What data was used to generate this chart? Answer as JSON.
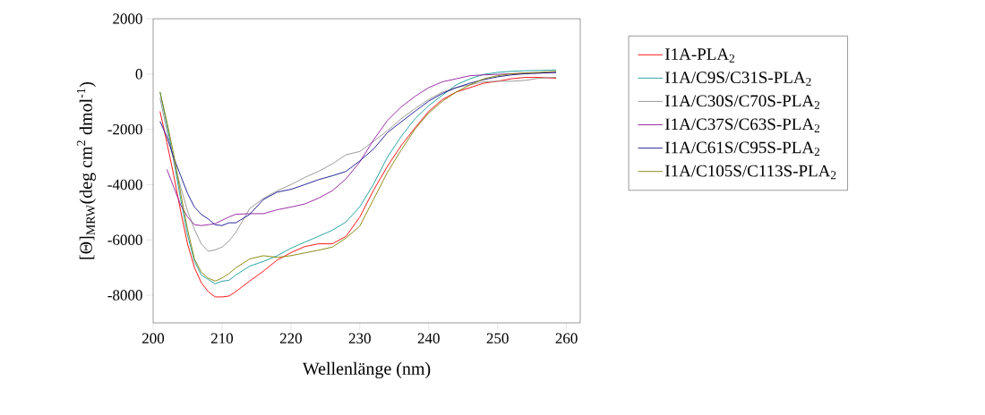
{
  "chart_data": {
    "type": "line",
    "xlabel": "Wellenlänge (nm)",
    "ylabel": "[Θ]$_{MRW}$(deg cm$^{2}$ dmol$^{-1}$)",
    "x": [
      201,
      202,
      203,
      204,
      205,
      206,
      207,
      208,
      209,
      210,
      211,
      212,
      214,
      216,
      218,
      220,
      222,
      224,
      226,
      228,
      230,
      232,
      234,
      236,
      238,
      240,
      242,
      244,
      246,
      248,
      250,
      252,
      254,
      256,
      258.5
    ],
    "series": [
      {
        "name": "I1A-PLA$_{2}$",
        "color": "#ff0000",
        "values": [
          -1350,
          -2480,
          -3680,
          -4960,
          -6150,
          -7000,
          -7550,
          -7870,
          -8060,
          -8060,
          -8030,
          -7870,
          -7490,
          -7130,
          -6730,
          -6460,
          -6240,
          -6140,
          -6140,
          -5870,
          -5170,
          -4200,
          -3340,
          -2590,
          -1950,
          -1350,
          -920,
          -650,
          -490,
          -330,
          -260,
          -170,
          -120,
          -120,
          -150
        ]
      },
      {
        "name": "I1A/C9S/C31S-PLA$_{2}$",
        "color": "#139a9a",
        "values": [
          -650,
          -1840,
          -3140,
          -4530,
          -5830,
          -6780,
          -7270,
          -7430,
          -7590,
          -7490,
          -7460,
          -7270,
          -6950,
          -6780,
          -6570,
          -6300,
          -6080,
          -5870,
          -5650,
          -5350,
          -4800,
          -3980,
          -3010,
          -2260,
          -1620,
          -1140,
          -760,
          -390,
          -170,
          -10,
          60,
          100,
          120,
          130,
          150
        ]
      },
      {
        "name": "I1A/C30S/C70S-PLA$_{2}$",
        "color": "#909090",
        "values": [
          -870,
          -2050,
          -3130,
          -4090,
          -4960,
          -5620,
          -6150,
          -6410,
          -6360,
          -6260,
          -6040,
          -5730,
          -4870,
          -4500,
          -4220,
          -4000,
          -3740,
          -3520,
          -3250,
          -2920,
          -2800,
          -2430,
          -2050,
          -1620,
          -1250,
          -920,
          -650,
          -490,
          -390,
          -280,
          -260,
          -260,
          -230,
          -150,
          -120
        ]
      },
      {
        "name": "I1A/C37S/C63S-PLA$_{2}$",
        "color": "#8e1a9c",
        "x": [
          202,
          203,
          204,
          205,
          206,
          207,
          208,
          209,
          210,
          211,
          212,
          214,
          216,
          218,
          220,
          222,
          224,
          226,
          228,
          230,
          232,
          234,
          236,
          238,
          240,
          242,
          244,
          246,
          248,
          250,
          252,
          254,
          256,
          258.5
        ],
        "values": [
          -3450,
          -4090,
          -4740,
          -5170,
          -5450,
          -5480,
          -5450,
          -5410,
          -5290,
          -5170,
          -5070,
          -5050,
          -5050,
          -4910,
          -4810,
          -4700,
          -4490,
          -4220,
          -3790,
          -3180,
          -2380,
          -1680,
          -1190,
          -810,
          -490,
          -280,
          -170,
          -60,
          -30,
          -10,
          10,
          30,
          30,
          60
        ]
      },
      {
        "name": "I1A/C61S/C95S-PLA$_{2}$",
        "color": "#10108c",
        "values": [
          -1710,
          -2270,
          -3030,
          -3680,
          -4320,
          -4810,
          -5080,
          -5240,
          -5450,
          -5480,
          -5380,
          -5380,
          -5080,
          -4540,
          -4270,
          -4170,
          -4000,
          -3820,
          -3680,
          -3520,
          -3140,
          -2710,
          -2120,
          -1730,
          -1350,
          -980,
          -700,
          -490,
          -330,
          -200,
          -100,
          -30,
          10,
          40,
          60
        ]
      },
      {
        "name": "I1A/C105S/C113S-PLA$_{2}$",
        "color": "#808000",
        "values": [
          -650,
          -1730,
          -2920,
          -4320,
          -5620,
          -6690,
          -7170,
          -7380,
          -7490,
          -7380,
          -7220,
          -7010,
          -6690,
          -6570,
          -6630,
          -6570,
          -6470,
          -6370,
          -6260,
          -5930,
          -5500,
          -4530,
          -3560,
          -2750,
          -2000,
          -1410,
          -980,
          -650,
          -390,
          -170,
          -60,
          10,
          40,
          60,
          100
        ]
      }
    ],
    "xlim": [
      200,
      262
    ],
    "ylim": [
      -9000,
      2000
    ],
    "xticks": [
      200,
      210,
      220,
      230,
      240,
      250,
      260
    ],
    "yticks": [
      -8000,
      -6000,
      -4000,
      -2000,
      0,
      2000
    ],
    "grid": false,
    "legend": "right",
    "marker": "none",
    "line_style": "solid"
  }
}
